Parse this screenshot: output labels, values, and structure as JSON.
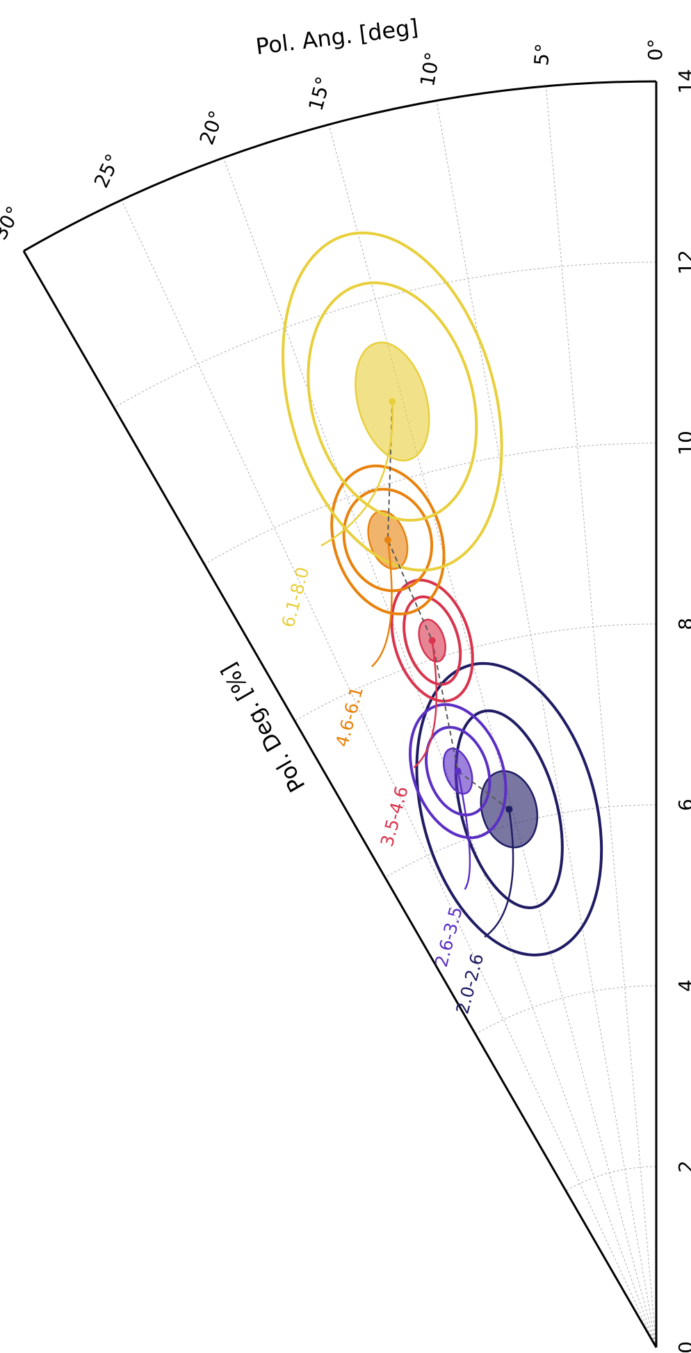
{
  "chart_data": {
    "type": "polar",
    "theta_label": "Pol. Ang. [deg]",
    "r_label": "Pol. Deg. [%]",
    "rlim": [
      0,
      14
    ],
    "rticks": [
      0,
      2,
      4,
      6,
      8,
      10,
      12,
      14
    ],
    "thetalim": [
      0,
      30
    ],
    "thetaticks": [
      {
        "value": 0,
        "label": "0°"
      },
      {
        "value": 5,
        "label": "5°"
      },
      {
        "value": 10,
        "label": "10°"
      },
      {
        "value": 15,
        "label": "15°"
      },
      {
        "value": 20,
        "label": "20°"
      },
      {
        "value": 25,
        "label": "25°"
      },
      {
        "value": 30,
        "label": "30°"
      }
    ],
    "grid": true,
    "series": [
      {
        "name": "2.0-2.6",
        "color": "#1f1c63",
        "pol_deg": 6.17,
        "pol_ang": 15.3,
        "contours": [
          [
            0.43,
            2.8
          ],
          [
            1.12,
            4.9
          ],
          [
            1.65,
            8.9
          ]
        ]
      },
      {
        "name": "2.6-3.5",
        "color": "#5b2fc4",
        "pol_deg": 6.74,
        "pol_ang": 19.0,
        "contours": [
          [
            0.26,
            1.2
          ],
          [
            0.5,
            2.8
          ],
          [
            0.76,
            4.2
          ]
        ]
      },
      {
        "name": "3.5-4.6",
        "color": "#d8344d",
        "pol_deg": 8.2,
        "pol_ang": 17.6,
        "contours": [
          [
            0.24,
            0.93
          ],
          [
            0.5,
            2.0
          ],
          [
            0.69,
            2.9
          ]
        ]
      },
      {
        "name": "4.6-6.1",
        "color": "#e8820c",
        "pol_deg": 9.41,
        "pol_ang": 18.4,
        "contours": [
          [
            0.33,
            1.22
          ],
          [
            0.57,
            2.9
          ],
          [
            0.84,
            3.6
          ]
        ]
      },
      {
        "name": "6.1-8.0",
        "color": "#e8cf3c",
        "pol_deg": 10.86,
        "pol_ang": 15.6,
        "contours": [
          [
            0.67,
            2.0
          ],
          [
            1.34,
            4.7
          ],
          [
            1.91,
            6.0
          ]
        ]
      }
    ]
  }
}
